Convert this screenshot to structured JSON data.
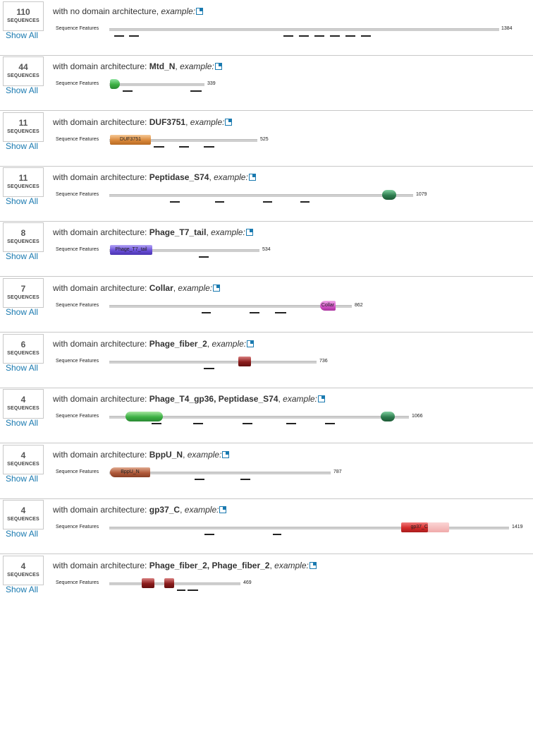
{
  "rows": [
    {
      "count": "110",
      "label": "SEQUENCES",
      "show_all": "Show All",
      "prefix": "with no domain architecture",
      "arch": "",
      "example": "example:",
      "seq_label": "Sequence Features",
      "length": "1384"
    },
    {
      "count": "44",
      "label": "SEQUENCES",
      "show_all": "Show All",
      "prefix": "with domain architecture: ",
      "arch": "Mtd_N",
      "example": "example:",
      "seq_label": "Sequence Features",
      "length": "339"
    },
    {
      "count": "11",
      "label": "SEQUENCES",
      "show_all": "Show All",
      "prefix": "with domain architecture: ",
      "arch": "DUF3751",
      "example": "example:",
      "seq_label": "Sequence Features",
      "length": "525",
      "domains": [
        "DUF3751"
      ]
    },
    {
      "count": "11",
      "label": "SEQUENCES",
      "show_all": "Show All",
      "prefix": "with domain architecture: ",
      "arch": "Peptidase_S74",
      "example": "example:",
      "seq_label": "Sequence Features",
      "length": "1079"
    },
    {
      "count": "8",
      "label": "SEQUENCES",
      "show_all": "Show All",
      "prefix": "with domain architecture: ",
      "arch": "Phage_T7_tail",
      "example": "example:",
      "seq_label": "Sequence Features",
      "length": "534",
      "domains": [
        "Phage_T7_tail"
      ]
    },
    {
      "count": "7",
      "label": "SEQUENCES",
      "show_all": "Show All",
      "prefix": "with domain architecture: ",
      "arch": "Collar",
      "example": "example:",
      "seq_label": "Sequence Features",
      "length": "862",
      "domains": [
        "Collar"
      ]
    },
    {
      "count": "6",
      "label": "SEQUENCES",
      "show_all": "Show All",
      "prefix": "with domain architecture: ",
      "arch": "Phage_fiber_2",
      "example": "example:",
      "seq_label": "Sequence Features",
      "length": "736"
    },
    {
      "count": "4",
      "label": "SEQUENCES",
      "show_all": "Show All",
      "prefix": "with domain architecture: ",
      "arch": "Phage_T4_gp36, Peptidase_S74",
      "example": "example:",
      "seq_label": "Sequence Features",
      "length": "1066"
    },
    {
      "count": "4",
      "label": "SEQUENCES",
      "show_all": "Show All",
      "prefix": "with domain architecture: ",
      "arch": "BppU_N",
      "example": "example:",
      "seq_label": "Sequence Features",
      "length": "787",
      "domains": [
        "BppU_N"
      ]
    },
    {
      "count": "4",
      "label": "SEQUENCES",
      "show_all": "Show All",
      "prefix": "with domain architecture: ",
      "arch": "gp37_C",
      "example": "example:",
      "seq_label": "Sequence Features",
      "length": "1419",
      "domains": [
        "gp37_C"
      ]
    },
    {
      "count": "4",
      "label": "SEQUENCES",
      "show_all": "Show All",
      "prefix": "with domain architecture: ",
      "arch": "Phage_fiber_2, Phage_fiber_2",
      "example": "example:",
      "seq_label": "Sequence Features",
      "length": "469"
    }
  ],
  "colors": {
    "link": "#1a7ab0",
    "green": "#3cb043",
    "dark_green": "#2e7d4f",
    "orange": "#d9883a",
    "purple": "#6a4fd8",
    "magenta": "#d455c8",
    "maroon": "#8b1c1c",
    "brown": "#b05a3a",
    "red": "#d42c2c"
  }
}
